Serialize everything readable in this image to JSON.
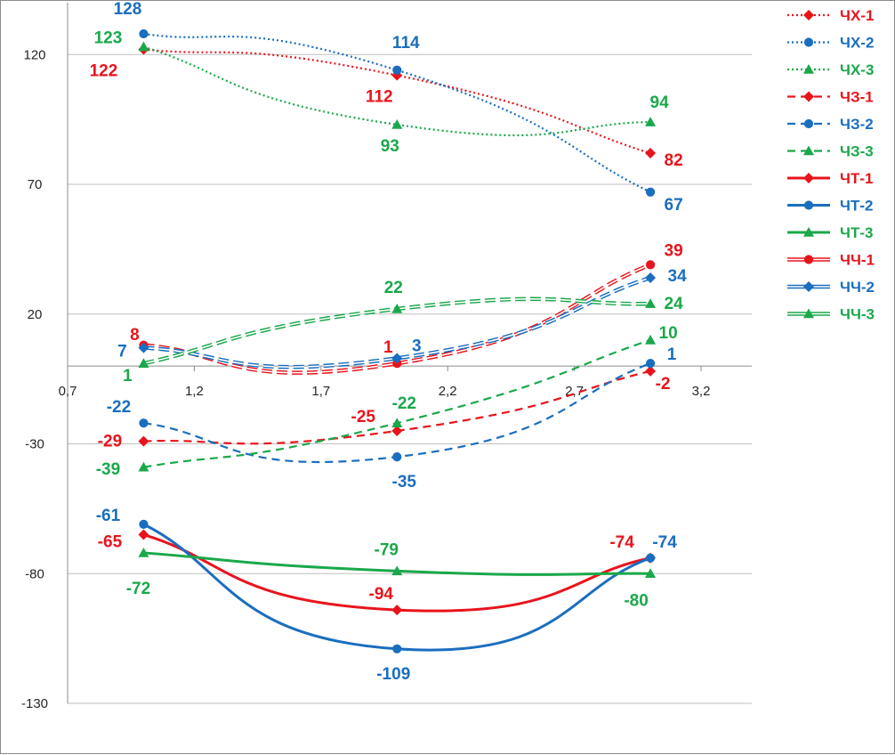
{
  "chart_data": {
    "type": "line",
    "title": "",
    "xlabel": "",
    "ylabel": "",
    "xlim": [
      0.7,
      3.4
    ],
    "ylim": [
      -130,
      140
    ],
    "x_ticks": [
      0.7,
      1.2,
      1.7,
      2.2,
      2.7,
      3.2
    ],
    "x_tick_labels": [
      "0,7",
      "1,2",
      "1,7",
      "2,2",
      "2,7",
      "3,2"
    ],
    "y_ticks": [
      -130,
      -80,
      -30,
      20,
      70,
      120
    ],
    "y_tick_labels": [
      "-130",
      "-80",
      "-30",
      "20",
      "70",
      "120"
    ],
    "grid": "horizontal",
    "legend_position": "right",
    "x": [
      1,
      2,
      3
    ],
    "series": [
      {
        "name": "ЧХ-1",
        "values": [
          122,
          112,
          82
        ],
        "labels": [
          "122",
          "112",
          "82"
        ],
        "color": "#e8141c",
        "dash": "dotted",
        "marker": "diamond",
        "line": "single"
      },
      {
        "name": "ЧХ-2",
        "values": [
          128,
          114,
          67
        ],
        "labels": [
          "128",
          "114",
          "67"
        ],
        "color": "#1a6ebf",
        "dash": "dotted",
        "marker": "circle",
        "line": "single"
      },
      {
        "name": "ЧХ-3",
        "values": [
          123,
          93,
          94
        ],
        "labels": [
          "123",
          "93",
          "94"
        ],
        "color": "#1aa84a",
        "dash": "dotted",
        "marker": "triangle",
        "line": "single"
      },
      {
        "name": "ЧЗ-1",
        "values": [
          -29,
          -25,
          -2
        ],
        "labels": [
          "-29",
          "-25",
          "-2"
        ],
        "color": "#e8141c",
        "dash": "dashed",
        "marker": "diamond",
        "line": "single"
      },
      {
        "name": "ЧЗ-2",
        "values": [
          -22,
          -35,
          1
        ],
        "labels": [
          "-22",
          "-35",
          "1"
        ],
        "color": "#1a6ebf",
        "dash": "dashed",
        "marker": "circle",
        "line": "single"
      },
      {
        "name": "ЧЗ-3",
        "values": [
          -39,
          -22,
          10
        ],
        "labels": [
          "-39",
          "-22",
          "10"
        ],
        "color": "#1aa84a",
        "dash": "dashed",
        "marker": "triangle",
        "line": "single"
      },
      {
        "name": "ЧТ-1",
        "values": [
          -65,
          -94,
          -74
        ],
        "labels": [
          "-65",
          "-94",
          "-74"
        ],
        "color": "#e8141c",
        "dash": "solid",
        "marker": "diamond",
        "line": "single"
      },
      {
        "name": "ЧТ-2",
        "values": [
          -61,
          -109,
          -74
        ],
        "labels": [
          "-61",
          "-109",
          "-74"
        ],
        "color": "#1a6ebf",
        "dash": "solid",
        "marker": "circle",
        "line": "single"
      },
      {
        "name": "ЧТ-3",
        "values": [
          -72,
          -79,
          -80
        ],
        "labels": [
          "-72",
          "-79",
          "-80"
        ],
        "color": "#1aa84a",
        "dash": "solid",
        "marker": "triangle",
        "line": "single"
      },
      {
        "name": "ЧЧ-1",
        "values": [
          8,
          1,
          39
        ],
        "labels": [
          "8",
          "1",
          "39"
        ],
        "color": "#e8141c",
        "dash": "solid",
        "marker": "circle",
        "line": "double"
      },
      {
        "name": "ЧЧ-2",
        "values": [
          7,
          3,
          34
        ],
        "labels": [
          "7",
          "3",
          "34"
        ],
        "color": "#1a6ebf",
        "dash": "solid",
        "marker": "diamond",
        "line": "double"
      },
      {
        "name": "ЧЧ-3",
        "values": [
          1,
          22,
          24
        ],
        "labels": [
          "1",
          "22",
          "24"
        ],
        "color": "#1aa84a",
        "dash": "solid",
        "marker": "triangle",
        "line": "double"
      }
    ]
  }
}
